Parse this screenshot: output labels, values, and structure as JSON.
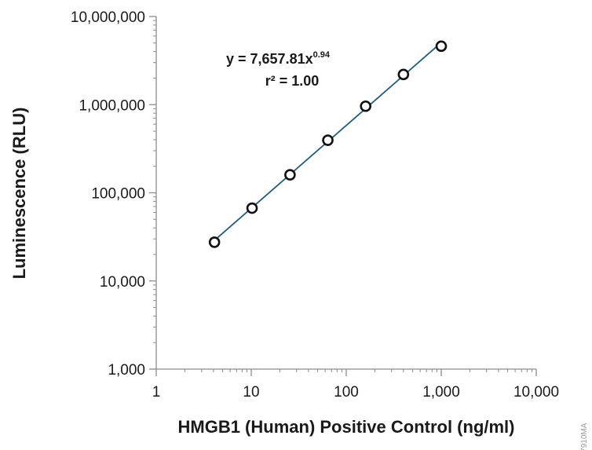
{
  "chart_data": {
    "type": "scatter",
    "x_scale": "log",
    "y_scale": "log",
    "xlabel": "HMGB1 (Human) Positive Control (ng/ml)",
    "ylabel": "Luminescence (RLU)",
    "xlim": [
      1,
      10000
    ],
    "ylim": [
      1000,
      10000000
    ],
    "x_ticks": [
      1,
      10,
      100,
      1000,
      10000
    ],
    "x_tick_labels": [
      "1",
      "10",
      "100",
      "1,000",
      "10,000"
    ],
    "y_ticks": [
      1000,
      10000,
      100000,
      1000000,
      10000000
    ],
    "y_tick_labels": [
      "1,000",
      "10,000",
      "100,000",
      "1,000,000",
      "10,000,000"
    ],
    "grid": false,
    "series": [
      {
        "x": [
          4.1,
          10.2,
          25.6,
          64,
          160,
          400,
          1000
        ],
        "y": [
          27500,
          67000,
          160000,
          395000,
          960000,
          2200000,
          4600000
        ],
        "marker": "open-circle",
        "marker_color": "#111111"
      }
    ],
    "fit": {
      "type": "power",
      "a": 7657.81,
      "b": 0.94,
      "x_range": [
        4.1,
        1000
      ],
      "color": "#1f5c82"
    },
    "annotations": {
      "equation_main": "y = 7,657.81x",
      "equation_exp": "0.94",
      "r2": "r² = 1.00"
    }
  },
  "figure_code": "17910MA"
}
